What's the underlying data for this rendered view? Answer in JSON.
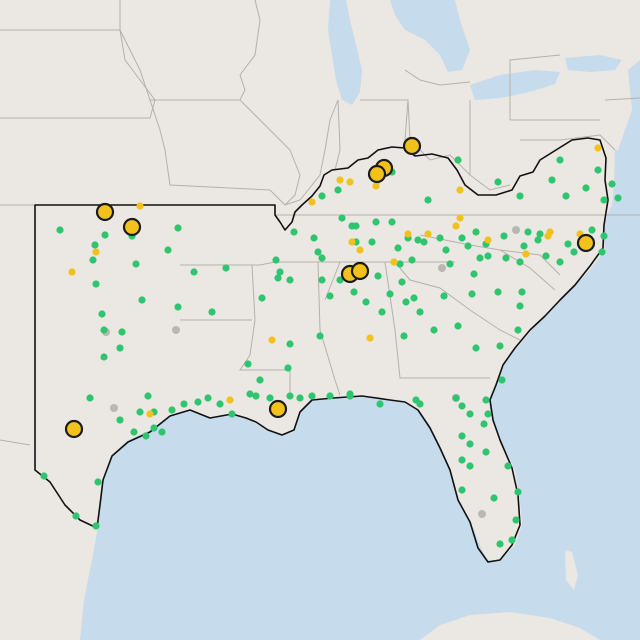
{
  "map": {
    "colors": {
      "water": "#c5d9ea",
      "land": "#ece8e4",
      "foreign_land": "#ece8e4",
      "state_border": "#b8b2ad",
      "region_outline": "#111111",
      "green": "#2fc56e",
      "yellow": "#f2c11b",
      "gray": "#b9b7b4",
      "large_marker_stroke": "#1b1b1b"
    },
    "layers": {
      "basemap": "terrain-light",
      "region": "highlighted-southeast-region",
      "markers": "station-points"
    }
  }
}
